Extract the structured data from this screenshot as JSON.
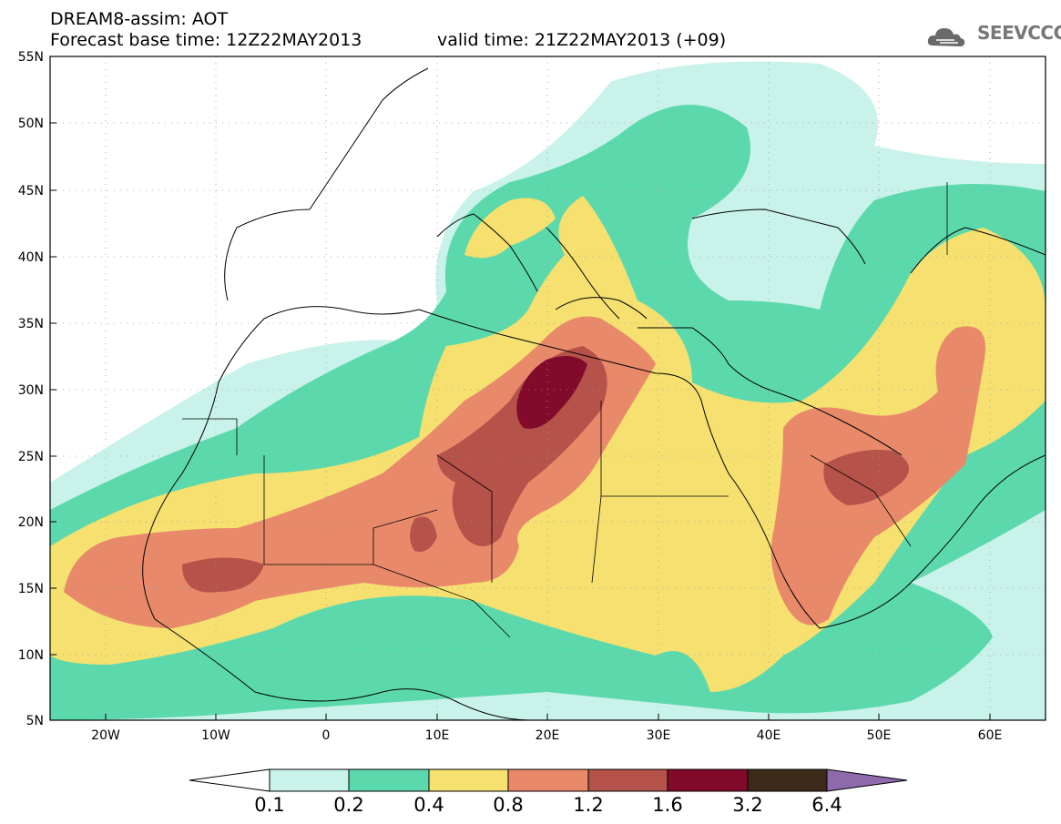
{
  "header": {
    "title": "DREAM8-assim: AOT",
    "forecast": "Forecast base time: 12Z22MAY2013",
    "valid": "valid time: 21Z22MAY2013 (+09)",
    "logo_text": "SEEVCCC"
  },
  "map": {
    "lat_labels": [
      "55N",
      "50N",
      "45N",
      "40N",
      "35N",
      "30N",
      "25N",
      "20N",
      "15N",
      "10N",
      "5N"
    ],
    "lon_labels": [
      "20W",
      "10W",
      "0",
      "10E",
      "20E",
      "30E",
      "40E",
      "50E",
      "60E"
    ],
    "extent": {
      "lon": [
        -25,
        65
      ],
      "lat": [
        5,
        55
      ]
    }
  },
  "colorbar": {
    "levels": [
      "0.1",
      "0.2",
      "0.4",
      "0.8",
      "1.2",
      "1.6",
      "3.2",
      "6.4"
    ],
    "colors": [
      "#c8f2ea",
      "#5cd9ac",
      "#f5e070",
      "#e8896a",
      "#b5524a",
      "#820a2a",
      "#3d2a1a",
      "#8e6aac"
    ]
  }
}
